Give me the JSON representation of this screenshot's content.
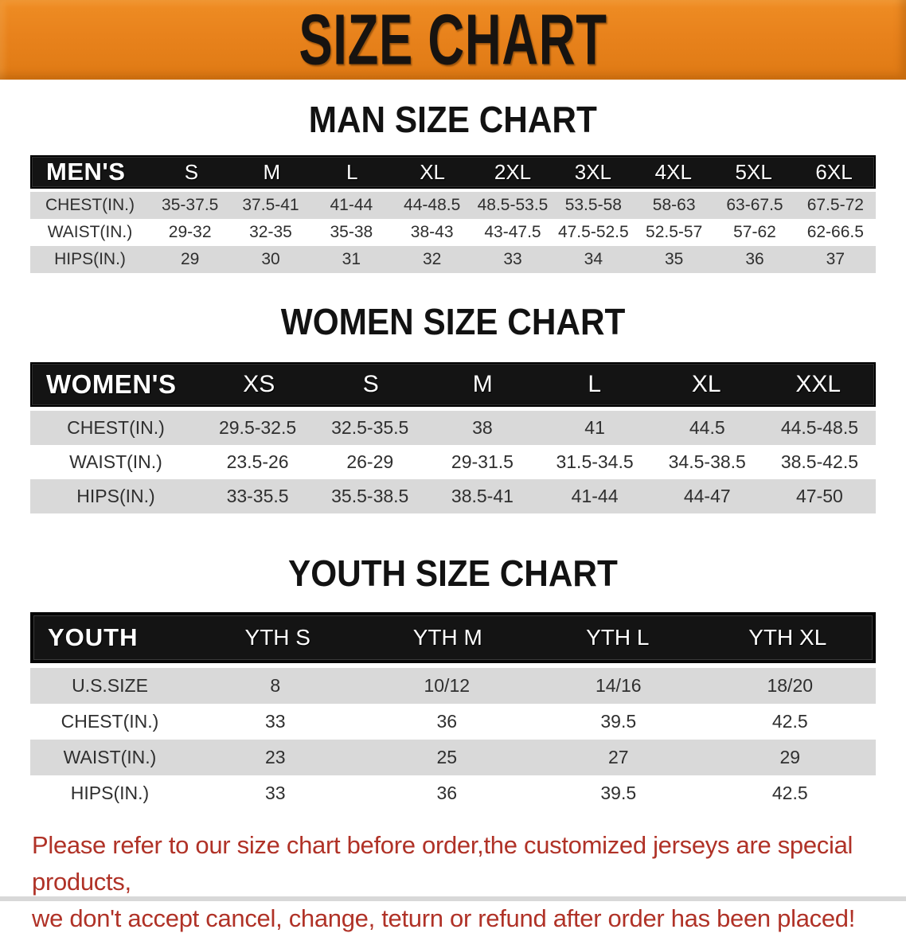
{
  "banner": {
    "title": "SIZE CHART",
    "bg_color": "#e8821c",
    "title_color": "#171310"
  },
  "sections": {
    "men": {
      "heading": "MAN SIZE CHART",
      "group_label": "MEN'S",
      "columns": [
        "S",
        "M",
        "L",
        "XL",
        "2XL",
        "3XL",
        "4XL",
        "5XL",
        "6XL"
      ],
      "rows": [
        {
          "label": "CHEST(IN.)",
          "values": [
            "35-37.5",
            "37.5-41",
            "41-44",
            "44-48.5",
            "48.5-53.5",
            "53.5-58",
            "58-63",
            "63-67.5",
            "67.5-72"
          ]
        },
        {
          "label": "WAIST(IN.)",
          "values": [
            "29-32",
            "32-35",
            "35-38",
            "38-43",
            "43-47.5",
            "47.5-52.5",
            "52.5-57",
            "57-62",
            "62-66.5"
          ]
        },
        {
          "label": "HIPS(IN.)",
          "values": [
            "29",
            "30",
            "31",
            "32",
            "33",
            "34",
            "35",
            "36",
            "37"
          ]
        }
      ]
    },
    "women": {
      "heading": "WOMEN SIZE CHART",
      "group_label": "WOMEN'S",
      "columns": [
        "XS",
        "S",
        "M",
        "L",
        "XL",
        "XXL"
      ],
      "rows": [
        {
          "label": "CHEST(IN.)",
          "values": [
            "29.5-32.5",
            "32.5-35.5",
            "38",
            "41",
            "44.5",
            "44.5-48.5"
          ]
        },
        {
          "label": "WAIST(IN.)",
          "values": [
            "23.5-26",
            "26-29",
            "29-31.5",
            "31.5-34.5",
            "34.5-38.5",
            "38.5-42.5"
          ]
        },
        {
          "label": "HIPS(IN.)",
          "values": [
            "33-35.5",
            "35.5-38.5",
            "38.5-41",
            "41-44",
            "44-47",
            "47-50"
          ]
        }
      ]
    },
    "youth": {
      "heading": "YOUTH SIZE CHART",
      "group_label": "YOUTH",
      "columns": [
        "YTH S",
        "YTH M",
        "YTH L",
        "YTH XL"
      ],
      "rows": [
        {
          "label": "U.S.SIZE",
          "values": [
            "8",
            "10/12",
            "14/16",
            "18/20"
          ]
        },
        {
          "label": "CHEST(IN.)",
          "values": [
            "33",
            "36",
            "39.5",
            "42.5"
          ]
        },
        {
          "label": "WAIST(IN.)",
          "values": [
            "23",
            "25",
            "27",
            "29"
          ]
        },
        {
          "label": "HIPS(IN.)",
          "values": [
            "33",
            "36",
            "39.5",
            "42.5"
          ]
        }
      ]
    }
  },
  "disclaimer": {
    "line1": "Please refer to our size chart before order,the customized jerseys are special products,",
    "line2": "we don't accept cancel, change, teturn or refund after order has been placed!",
    "text_color": "#b03227"
  }
}
